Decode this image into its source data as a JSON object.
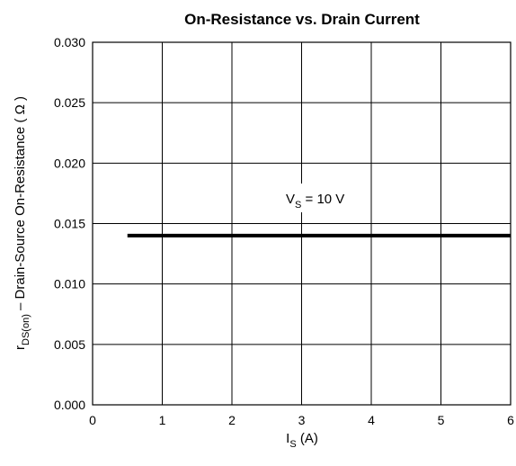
{
  "chart_data": {
    "type": "line",
    "title": "On-Resistance vs. Drain Current",
    "xlabel": {
      "main": "I",
      "sub": "S",
      "rest": " (A)"
    },
    "ylabel": {
      "main": "r",
      "sub": "DS(on)",
      "rest": " – Drain-Source On-Resistance ( Ω )"
    },
    "xlim": [
      0,
      6
    ],
    "ylim": [
      0,
      0.03
    ],
    "x_ticks": [
      "0",
      "1",
      "2",
      "3",
      "4",
      "5",
      "6"
    ],
    "y_ticks": [
      "0.000",
      "0.005",
      "0.010",
      "0.015",
      "0.020",
      "0.025",
      "0.030"
    ],
    "grid": true,
    "series": [
      {
        "name": {
          "main": "V",
          "sub": "S",
          "rest": " = 10 V"
        },
        "x": [
          0.5,
          6
        ],
        "y": [
          0.014,
          0.014
        ],
        "color": "#000000"
      }
    ]
  }
}
